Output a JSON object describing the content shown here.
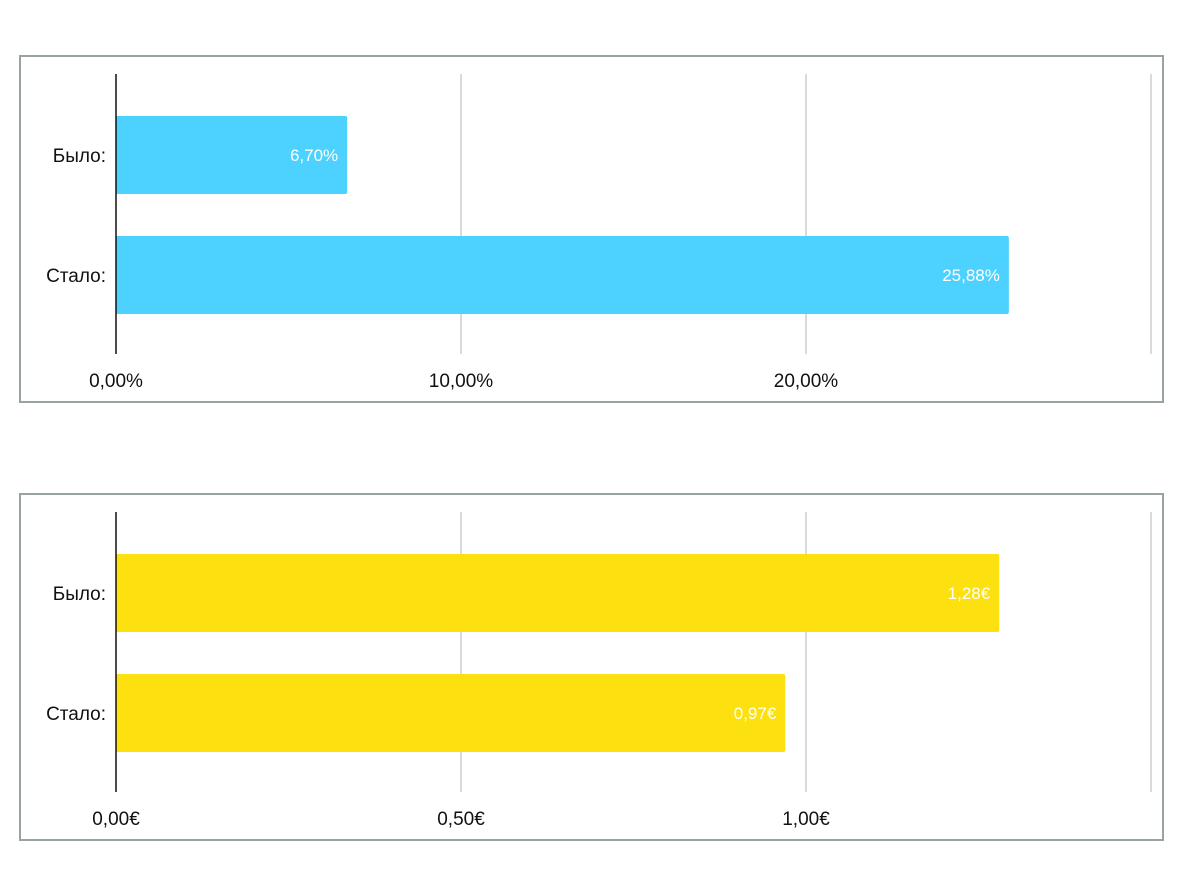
{
  "chart_data": [
    {
      "type": "bar",
      "orientation": "horizontal",
      "categories": [
        "Было:",
        "Стало:"
      ],
      "values": [
        6.7,
        25.88
      ],
      "value_labels": [
        "6,70%",
        "25,88%"
      ],
      "xlim": [
        0,
        30
      ],
      "x_ticks": [
        0,
        10,
        20,
        30
      ],
      "x_tick_labels": [
        "0,00%",
        "10,00%",
        "20,00%",
        ""
      ],
      "grid": true,
      "bar_color": "#4dd2ff"
    },
    {
      "type": "bar",
      "orientation": "horizontal",
      "categories": [
        "Было:",
        "Стало:"
      ],
      "values": [
        1.28,
        0.97
      ],
      "value_labels": [
        "1,28€",
        "0,97€"
      ],
      "xlim": [
        0,
        1.5
      ],
      "x_ticks": [
        0,
        0.5,
        1.0,
        1.5
      ],
      "x_tick_labels": [
        "0,00€",
        "0,50€",
        "1,00€",
        ""
      ],
      "grid": true,
      "bar_color": "#fde010"
    }
  ]
}
